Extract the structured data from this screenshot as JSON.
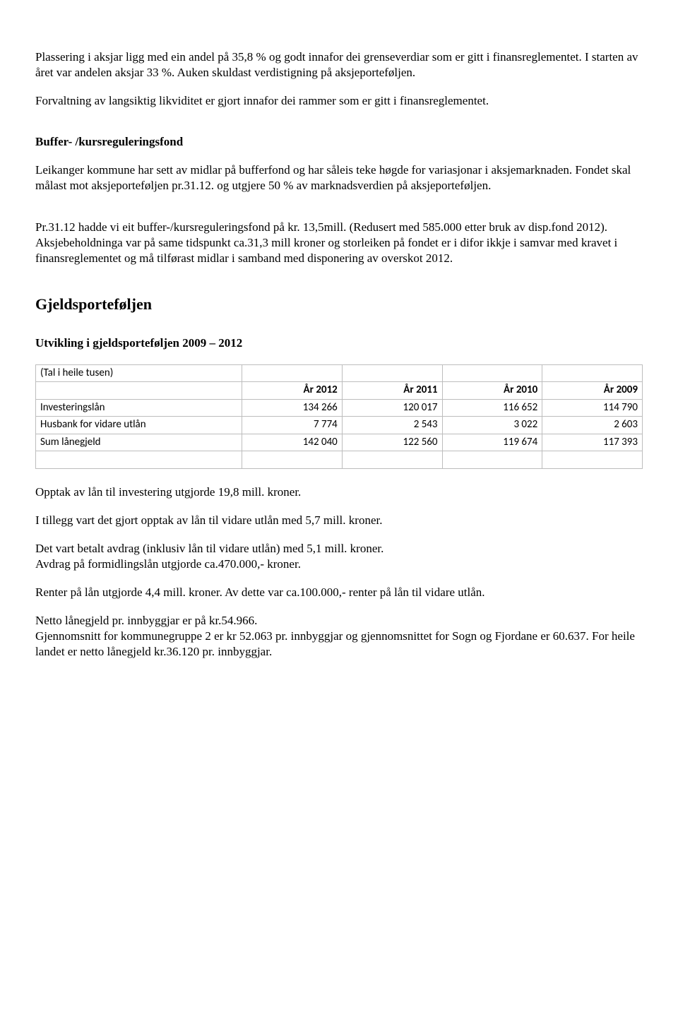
{
  "para1": "Plassering i aksjar ligg med ein andel på 35,8 % og godt innafor dei grenseverdiar som er gitt i finansreglementet. I starten av året var andelen aksjar 33 %. Auken skuldast verdistigning på aksjeporteføljen.",
  "para2": "Forvaltning av langsiktig likviditet er gjort innafor dei rammer som er gitt i finansreglementet.",
  "buffer_heading": "Buffer- /kursreguleringsfond",
  "buffer_p1": "Leikanger kommune har sett av midlar på bufferfond og har såleis teke høgde for variasjonar i aksjemarknaden. Fondet skal målast mot aksjeporteføljen pr.31.12. og utgjere 50 % av marknadsverdien på aksjeporteføljen.",
  "buffer_p2": "Pr.31.12 hadde vi eit buffer-/kursreguleringsfond på kr. 13,5mill. (Redusert med 585.000 etter bruk av disp.fond 2012).",
  "buffer_p3": "Aksjebeholdninga var på same tidspunkt ca.31,3 mill kroner og storleiken på fondet er i difor ikkje i samvar med kravet i finansreglementet og må tilførast midlar i samband med disponering av overskot 2012.",
  "gjeld_heading": "Gjeldsporteføljen",
  "gjeld_sub": "Utvikling i gjeldsporteføljen 2009 – 2012",
  "table": {
    "caption": "(Tal i heile tusen)",
    "columns": [
      "",
      "År 2012",
      "År 2011",
      "År 2010",
      "År 2009"
    ],
    "rows": [
      [
        "Investeringslån",
        "134 266",
        "120 017",
        "116 652",
        "114 790"
      ],
      [
        "Husbank for vidare utlån",
        "7 774",
        "2 543",
        "3 022",
        "2 603"
      ],
      [
        "Sum lånegjeld",
        "142 040",
        "122 560",
        "119 674",
        "117 393"
      ]
    ],
    "col_widths": [
      "34%",
      "16.5%",
      "16.5%",
      "16.5%",
      "16.5%"
    ]
  },
  "g_p1": "Opptak av lån til investering utgjorde 19,8 mill. kroner.",
  "g_p2": "I tillegg vart det gjort opptak av lån til vidare utlån med 5,7 mill. kroner.",
  "g_p3a": "Det vart betalt avdrag (inklusiv lån til vidare utlån) med 5,1 mill. kroner.",
  "g_p3b": "Avdrag på formidlingslån utgjorde ca.470.000,- kroner.",
  "g_p4": "Renter på lån utgjorde 4,4 mill. kroner. Av dette var ca.100.000,- renter på lån til vidare utlån.",
  "g_p5a": "Netto lånegjeld pr. innbyggjar er på kr.54.966.",
  "g_p5b": "Gjennomsnitt for kommunegruppe 2 er kr 52.063 pr. innbyggjar og gjennomsnittet for Sogn og Fjordane er 60.637. For heile landet er netto lånegjeld kr.36.120 pr. innbyggjar."
}
